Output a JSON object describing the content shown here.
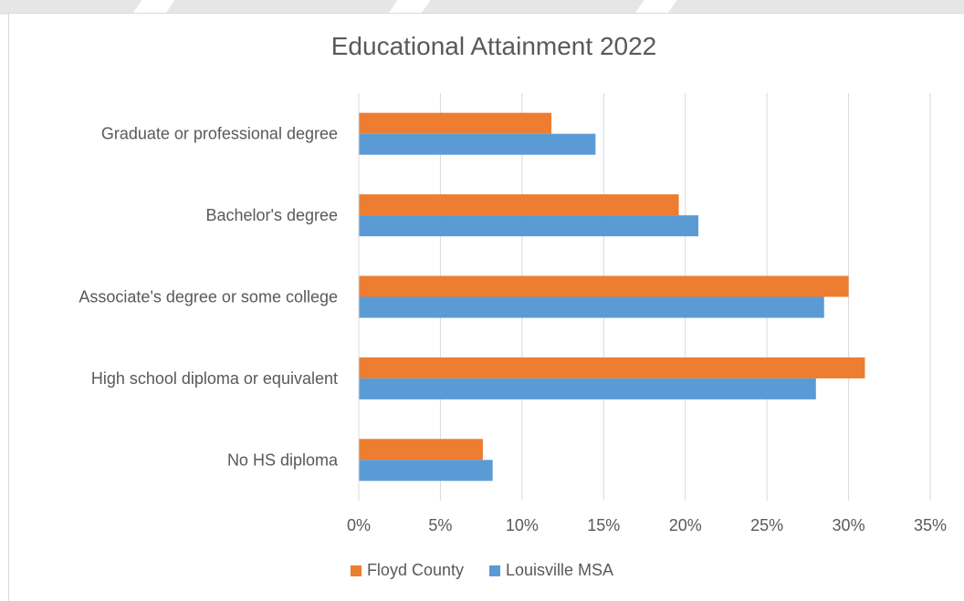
{
  "chart_data": {
    "type": "bar",
    "orientation": "horizontal",
    "title": "Educational Attainment 2022",
    "xlabel": "",
    "ylabel": "",
    "categories": [
      "Graduate or professional degree",
      "Bachelor's degree",
      "Associate's degree or some college",
      "High school diploma or equivalent",
      "No HS diploma"
    ],
    "series": [
      {
        "name": "Floyd County",
        "color": "#ed7d31",
        "values": [
          11.8,
          19.6,
          30.0,
          31.0,
          7.6
        ]
      },
      {
        "name": "Louisville MSA",
        "color": "#5b9bd5",
        "values": [
          14.5,
          20.8,
          28.5,
          28.0,
          8.2
        ]
      }
    ],
    "xlim": [
      0,
      35
    ],
    "xticks": [
      "0%",
      "5%",
      "10%",
      "15%",
      "20%",
      "25%",
      "30%",
      "35%"
    ],
    "grid": true,
    "legend": "bottom"
  }
}
